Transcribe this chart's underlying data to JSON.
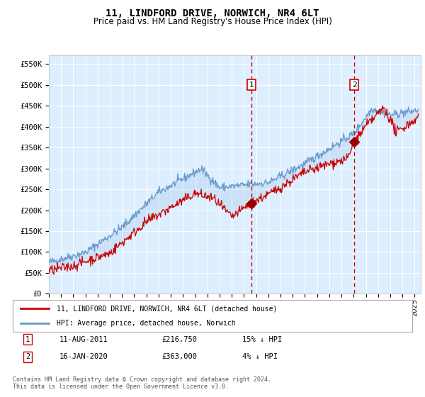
{
  "title": "11, LINDFORD DRIVE, NORWICH, NR4 6LT",
  "subtitle": "Price paid vs. HM Land Registry's House Price Index (HPI)",
  "title_fontsize": 10,
  "subtitle_fontsize": 8.5,
  "ylabel_ticks": [
    "£0",
    "£50K",
    "£100K",
    "£150K",
    "£200K",
    "£250K",
    "£300K",
    "£350K",
    "£400K",
    "£450K",
    "£500K",
    "£550K"
  ],
  "ytick_values": [
    0,
    50000,
    100000,
    150000,
    200000,
    250000,
    300000,
    350000,
    400000,
    450000,
    500000,
    550000
  ],
  "ylim": [
    0,
    570000
  ],
  "xlim_start": 1995.0,
  "xlim_end": 2025.5,
  "background_color": "#ddeeff",
  "grid_color": "#ffffff",
  "sale1_date_x": 2011.6,
  "sale1_price": 216750,
  "sale1_label": "1",
  "sale2_date_x": 2020.05,
  "sale2_price": 363000,
  "sale2_label": "2",
  "vline_color": "#cc0000",
  "marker_color": "#990000",
  "hpi_line_color": "#6699cc",
  "price_line_color": "#cc0000",
  "legend_entries": [
    "11, LINDFORD DRIVE, NORWICH, NR4 6LT (detached house)",
    "HPI: Average price, detached house, Norwich"
  ],
  "table_rows": [
    [
      "1",
      "11-AUG-2011",
      "£216,750",
      "15% ↓ HPI"
    ],
    [
      "2",
      "16-JAN-2020",
      "£363,000",
      "4% ↓ HPI"
    ]
  ],
  "footer": "Contains HM Land Registry data © Crown copyright and database right 2024.\nThis data is licensed under the Open Government Licence v3.0.",
  "xtick_years": [
    1995,
    1996,
    1997,
    1998,
    1999,
    2000,
    2001,
    2002,
    2003,
    2004,
    2005,
    2006,
    2007,
    2008,
    2009,
    2010,
    2011,
    2012,
    2013,
    2014,
    2015,
    2016,
    2017,
    2018,
    2019,
    2020,
    2021,
    2022,
    2023,
    2024,
    2025
  ]
}
